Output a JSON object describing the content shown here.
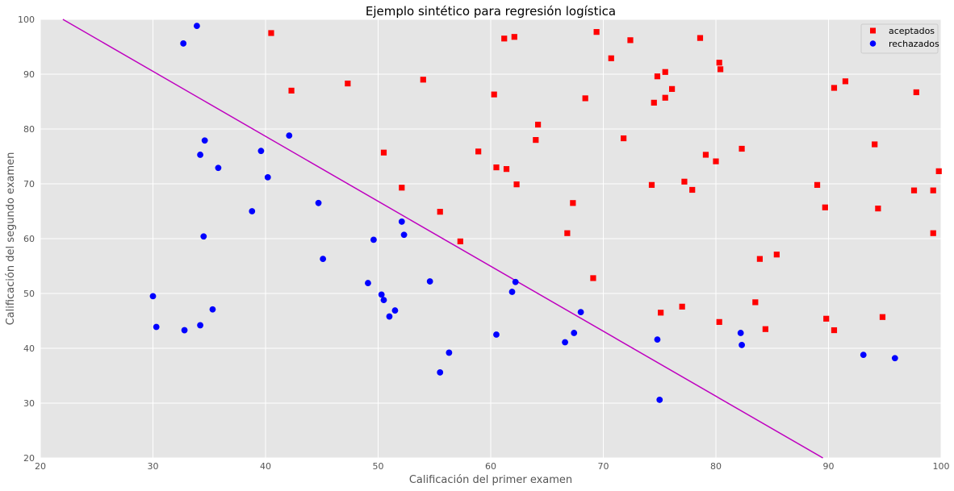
{
  "chart_data": {
    "type": "scatter",
    "title": "Ejemplo sintético para regresión logística",
    "xlabel": "Calificación del primer examen",
    "ylabel": "Calificación del segundo examen",
    "xlim": [
      20,
      100
    ],
    "ylim": [
      20,
      100
    ],
    "xticks": [
      20,
      30,
      40,
      50,
      60,
      70,
      80,
      90,
      100
    ],
    "yticks": [
      20,
      30,
      40,
      50,
      60,
      70,
      80,
      90,
      100
    ],
    "grid": true,
    "legend_position": "top-right",
    "background": "#e5e5e5",
    "series": [
      {
        "name": "aceptados",
        "marker": "square",
        "color": "#ff0000",
        "points": [
          [
            40.5,
            97.5
          ],
          [
            42.3,
            87.0
          ],
          [
            47.3,
            88.3
          ],
          [
            54.0,
            89.0
          ],
          [
            50.5,
            75.7
          ],
          [
            52.1,
            69.3
          ],
          [
            55.5,
            64.9
          ],
          [
            57.3,
            59.5
          ],
          [
            58.9,
            75.9
          ],
          [
            60.3,
            86.3
          ],
          [
            60.5,
            73.0
          ],
          [
            61.2,
            96.5
          ],
          [
            61.4,
            72.7
          ],
          [
            62.1,
            96.8
          ],
          [
            62.3,
            69.9
          ],
          [
            64.0,
            78.0
          ],
          [
            64.2,
            80.8
          ],
          [
            66.8,
            61.0
          ],
          [
            67.3,
            66.5
          ],
          [
            68.4,
            85.6
          ],
          [
            69.1,
            52.8
          ],
          [
            69.4,
            97.7
          ],
          [
            70.7,
            92.9
          ],
          [
            71.8,
            78.3
          ],
          [
            72.4,
            96.2
          ],
          [
            74.3,
            69.8
          ],
          [
            74.5,
            84.8
          ],
          [
            74.8,
            89.6
          ],
          [
            75.1,
            46.5
          ],
          [
            75.5,
            85.7
          ],
          [
            75.5,
            90.4
          ],
          [
            76.1,
            87.3
          ],
          [
            77.0,
            47.6
          ],
          [
            77.2,
            70.4
          ],
          [
            77.9,
            68.9
          ],
          [
            78.6,
            96.6
          ],
          [
            79.1,
            75.3
          ],
          [
            80.0,
            74.1
          ],
          [
            80.3,
            44.8
          ],
          [
            80.3,
            92.1
          ],
          [
            80.4,
            90.9
          ],
          [
            82.3,
            76.4
          ],
          [
            83.5,
            48.4
          ],
          [
            83.9,
            56.3
          ],
          [
            84.4,
            43.5
          ],
          [
            85.4,
            57.1
          ],
          [
            89.0,
            69.8
          ],
          [
            89.7,
            65.7
          ],
          [
            89.8,
            45.4
          ],
          [
            90.5,
            87.5
          ],
          [
            90.5,
            43.3
          ],
          [
            91.5,
            88.7
          ],
          [
            94.1,
            77.2
          ],
          [
            94.4,
            65.5
          ],
          [
            94.8,
            45.7
          ],
          [
            97.6,
            68.8
          ],
          [
            97.8,
            86.7
          ],
          [
            99.3,
            68.8
          ],
          [
            99.3,
            61.0
          ],
          [
            99.8,
            72.3
          ]
        ]
      },
      {
        "name": "rechazados",
        "marker": "circle",
        "color": "#0000ff",
        "points": [
          [
            30.0,
            49.5
          ],
          [
            30.3,
            43.9
          ],
          [
            32.7,
            95.6
          ],
          [
            32.8,
            43.3
          ],
          [
            33.9,
            98.8
          ],
          [
            34.2,
            75.3
          ],
          [
            34.2,
            44.2
          ],
          [
            34.5,
            60.4
          ],
          [
            34.6,
            77.9
          ],
          [
            35.3,
            47.1
          ],
          [
            35.8,
            72.9
          ],
          [
            38.8,
            65.0
          ],
          [
            39.6,
            76.0
          ],
          [
            40.2,
            71.2
          ],
          [
            42.1,
            78.8
          ],
          [
            44.7,
            66.5
          ],
          [
            45.1,
            56.3
          ],
          [
            49.1,
            51.9
          ],
          [
            49.6,
            59.8
          ],
          [
            50.3,
            49.8
          ],
          [
            50.5,
            48.8
          ],
          [
            51.0,
            45.8
          ],
          [
            51.5,
            46.9
          ],
          [
            52.1,
            63.1
          ],
          [
            52.3,
            60.7
          ],
          [
            54.6,
            52.2
          ],
          [
            55.5,
            35.6
          ],
          [
            56.3,
            39.2
          ],
          [
            60.5,
            42.5
          ],
          [
            61.9,
            50.3
          ],
          [
            62.2,
            52.1
          ],
          [
            66.6,
            41.1
          ],
          [
            67.4,
            42.8
          ],
          [
            68.0,
            46.6
          ],
          [
            74.8,
            41.6
          ],
          [
            75.0,
            30.6
          ],
          [
            82.2,
            42.8
          ],
          [
            82.3,
            40.6
          ],
          [
            93.1,
            38.8
          ],
          [
            95.9,
            38.2
          ]
        ]
      }
    ],
    "decision_boundary": {
      "color": "#bf00bf",
      "points": [
        [
          22.0,
          100.0
        ],
        [
          89.5,
          20.0
        ]
      ]
    }
  }
}
